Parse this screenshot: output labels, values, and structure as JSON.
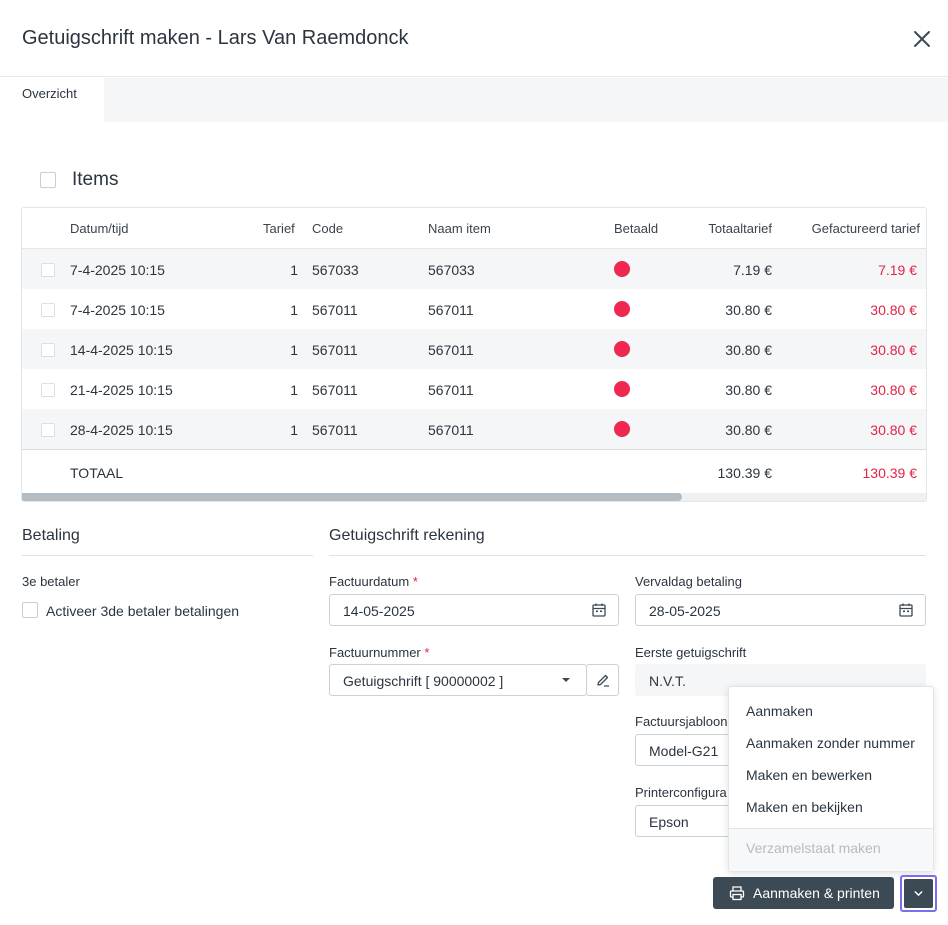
{
  "dialog": {
    "title": "Getuigschrift maken - Lars Van Raemdonck"
  },
  "tabs": [
    {
      "label": "Overzicht"
    }
  ],
  "items": {
    "title": "Items",
    "columns": [
      "Datum/tijd",
      "Tarief",
      "Code",
      "Naam item",
      "Betaald",
      "Totaaltarief",
      "Gefactureerd tarief"
    ],
    "rows": [
      {
        "datum": "7-4-2025 10:15",
        "tarief": "1",
        "code": "567033",
        "naam": "567033",
        "totaal": "7.19 €",
        "gefactureerd": "7.19 €"
      },
      {
        "datum": "7-4-2025 10:15",
        "tarief": "1",
        "code": "567011",
        "naam": "567011",
        "totaal": "30.80 €",
        "gefactureerd": "30.80 €"
      },
      {
        "datum": "14-4-2025 10:15",
        "tarief": "1",
        "code": "567011",
        "naam": "567011",
        "totaal": "30.80 €",
        "gefactureerd": "30.80 €"
      },
      {
        "datum": "21-4-2025 10:15",
        "tarief": "1",
        "code": "567011",
        "naam": "567011",
        "totaal": "30.80 €",
        "gefactureerd": "30.80 €"
      },
      {
        "datum": "28-4-2025 10:15",
        "tarief": "1",
        "code": "567011",
        "naam": "567011",
        "totaal": "30.80 €",
        "gefactureerd": "30.80 €"
      }
    ],
    "total": {
      "label": "TOTAAL",
      "totaal": "130.39 €",
      "gefactureerd": "130.39 €"
    }
  },
  "betaling": {
    "title": "Betaling",
    "third_payer_label": "3e betaler",
    "third_payer_checkbox": "Activeer 3de betaler betalingen"
  },
  "rekening": {
    "title": "Getuigschrift rekening",
    "factuurdatum_label": "Factuurdatum",
    "factuurdatum_value": "14-05-2025",
    "vervaldag_label": "Vervaldag betaling",
    "vervaldag_value": "28-05-2025",
    "factuurnummer_label": "Factuurnummer",
    "factuurnummer_value": "Getuigschrift [ 90000002 ]",
    "eerste_label": "Eerste getuigschrift",
    "eerste_value": "N.V.T.",
    "sjabloon_label": "Factuursjabloon",
    "sjabloon_value": "Model-G21",
    "printer_label": "Printerconfigura",
    "printer_value": "Epson",
    "required_mark": "*"
  },
  "menu": {
    "items": [
      "Aanmaken",
      "Aanmaken zonder nummer",
      "Maken en bewerken",
      "Maken en bekijken"
    ],
    "disabled_item": "Verzamelstaat maken"
  },
  "actions": {
    "primary_label": "Aanmaken & printen"
  },
  "colors": {
    "accent_red": "#e2244a",
    "unpaid_dot": "#f0284f",
    "button_dark": "#3b4a54",
    "focus_ring": "#7b6cf0"
  }
}
